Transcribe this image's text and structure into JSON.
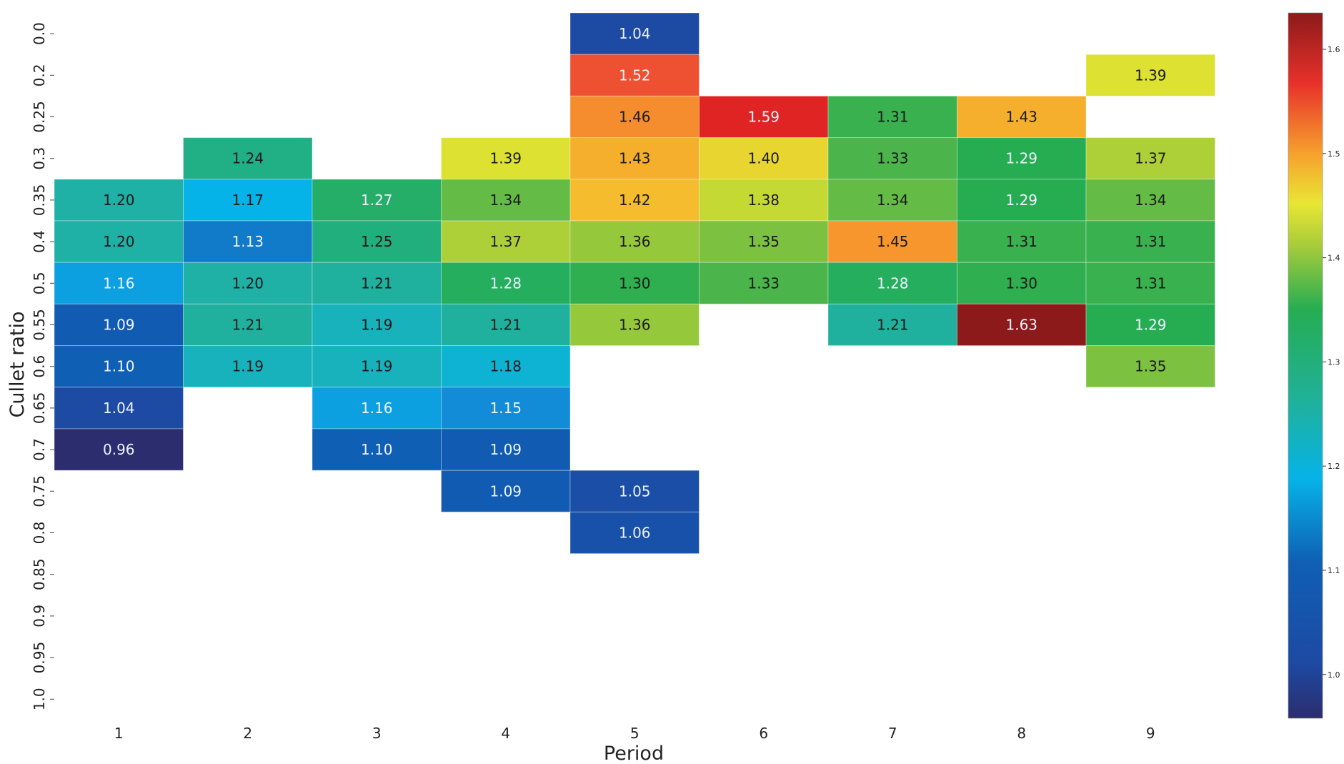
{
  "chart_data": {
    "type": "heatmap",
    "title": "",
    "xlabel": "Period",
    "ylabel": "Cullet ratio",
    "x_categories": [
      "1",
      "2",
      "3",
      "4",
      "5",
      "6",
      "7",
      "8",
      "9"
    ],
    "y_categories": [
      "0.0",
      "0.2",
      "0.25",
      "0.3",
      "0.35",
      "0.4",
      "0.5",
      "0.55",
      "0.6",
      "0.65",
      "0.7",
      "0.75",
      "0.8",
      "0.85",
      "0.9",
      "0.95",
      "1.0"
    ],
    "values": [
      [
        null,
        null,
        null,
        null,
        1.04,
        null,
        null,
        null,
        null
      ],
      [
        null,
        null,
        null,
        null,
        1.52,
        null,
        null,
        null,
        1.39
      ],
      [
        null,
        null,
        null,
        null,
        1.46,
        1.59,
        1.31,
        1.43,
        null
      ],
      [
        null,
        1.24,
        null,
        1.39,
        1.43,
        1.4,
        1.33,
        1.29,
        1.37
      ],
      [
        1.2,
        1.17,
        1.27,
        1.34,
        1.42,
        1.38,
        1.34,
        1.29,
        1.34
      ],
      [
        1.2,
        1.13,
        1.25,
        1.37,
        1.36,
        1.35,
        1.45,
        1.31,
        1.31
      ],
      [
        1.16,
        1.2,
        1.21,
        1.28,
        1.3,
        1.33,
        1.28,
        1.3,
        1.31
      ],
      [
        1.09,
        1.21,
        1.19,
        1.21,
        1.36,
        null,
        1.21,
        1.63,
        1.29
      ],
      [
        1.1,
        1.19,
        1.19,
        1.18,
        null,
        null,
        null,
        null,
        1.35
      ],
      [
        1.04,
        null,
        1.16,
        1.15,
        null,
        null,
        null,
        null,
        null
      ],
      [
        0.96,
        null,
        1.1,
        1.09,
        null,
        null,
        null,
        null,
        null
      ],
      [
        null,
        null,
        null,
        1.09,
        1.05,
        null,
        null,
        null,
        null
      ],
      [
        null,
        null,
        null,
        null,
        1.06,
        null,
        null,
        null,
        null
      ],
      [
        null,
        null,
        null,
        null,
        null,
        null,
        null,
        null,
        null
      ],
      [
        null,
        null,
        null,
        null,
        null,
        null,
        null,
        null,
        null
      ],
      [
        null,
        null,
        null,
        null,
        null,
        null,
        null,
        null,
        null
      ],
      [
        null,
        null,
        null,
        null,
        null,
        null,
        null,
        null,
        null
      ]
    ],
    "colormap": "jet-like (dark blue → cyan → green → yellow → orange → red → dark red)",
    "value_range": [
      0.96,
      1.63
    ],
    "colorbar": {
      "ticks": [
        "1.0",
        "1.1",
        "1.2",
        "1.3",
        "1.4",
        "1.5",
        "1.6"
      ]
    }
  }
}
